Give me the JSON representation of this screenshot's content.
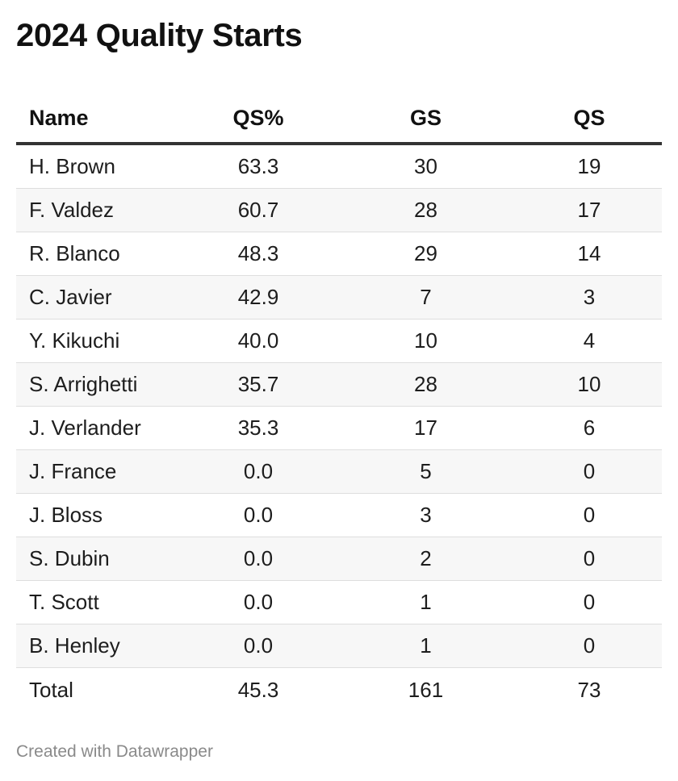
{
  "title": "2024 Quality Starts",
  "footer": "Created with Datawrapper",
  "chart_data": {
    "type": "table",
    "title": "2024 Quality Starts",
    "columns": [
      "Name",
      "QS%",
      "GS",
      "QS"
    ],
    "rows": [
      {
        "name": "H. Brown",
        "qs_pct": "63.3",
        "gs": "30",
        "qs": "19"
      },
      {
        "name": "F. Valdez",
        "qs_pct": "60.7",
        "gs": "28",
        "qs": "17"
      },
      {
        "name": "R. Blanco",
        "qs_pct": "48.3",
        "gs": "29",
        "qs": "14"
      },
      {
        "name": "C. Javier",
        "qs_pct": "42.9",
        "gs": "7",
        "qs": "3"
      },
      {
        "name": "Y. Kikuchi",
        "qs_pct": "40.0",
        "gs": "10",
        "qs": "4"
      },
      {
        "name": "S. Arrighetti",
        "qs_pct": "35.7",
        "gs": "28",
        "qs": "10"
      },
      {
        "name": "J. Verlander",
        "qs_pct": "35.3",
        "gs": "17",
        "qs": "6"
      },
      {
        "name": "J. France",
        "qs_pct": "0.0",
        "gs": "5",
        "qs": "0"
      },
      {
        "name": "J. Bloss",
        "qs_pct": "0.0",
        "gs": "3",
        "qs": "0"
      },
      {
        "name": "S. Dubin",
        "qs_pct": "0.0",
        "gs": "2",
        "qs": "0"
      },
      {
        "name": "T. Scott",
        "qs_pct": "0.0",
        "gs": "1",
        "qs": "0"
      },
      {
        "name": "B. Henley",
        "qs_pct": "0.0",
        "gs": "1",
        "qs": "0"
      },
      {
        "name": "Total",
        "qs_pct": "45.3",
        "gs": "161",
        "qs": "73"
      }
    ]
  }
}
